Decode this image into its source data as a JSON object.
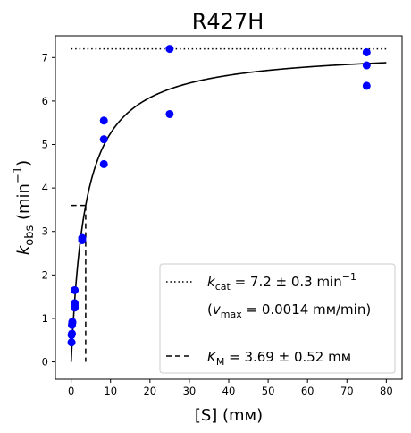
{
  "chart_data": {
    "type": "scatter",
    "title": "R427H",
    "xlabel": "[S] (mм)",
    "ylabel": {
      "main": "k",
      "sub": "obs",
      "rest": " (min",
      "sup": "−1",
      "end": ")"
    },
    "xlim": [
      -4,
      84
    ],
    "ylim": [
      -0.4,
      7.5
    ],
    "xticks": [
      "0",
      "10",
      "20",
      "30",
      "40",
      "50",
      "60",
      "70",
      "80"
    ],
    "yticks": [
      "0",
      "1",
      "2",
      "3",
      "4",
      "5",
      "6",
      "7"
    ],
    "points": {
      "x": [
        0.1,
        0.1,
        0.2,
        0.2,
        0.3,
        0.3,
        0.9,
        0.9,
        0.9,
        0.9,
        2.8,
        2.8,
        8.3,
        8.3,
        8.3,
        25,
        25,
        75,
        75,
        75
      ],
      "y": [
        0.45,
        0.62,
        0.65,
        0.85,
        0.9,
        0.92,
        1.25,
        1.3,
        1.35,
        1.65,
        2.8,
        2.85,
        4.55,
        5.12,
        5.55,
        5.7,
        7.2,
        6.35,
        6.82,
        7.12
      ],
      "color": "#0000ff"
    },
    "fit": {
      "kcat": 7.2,
      "km": 3.69,
      "x_range": [
        0,
        80
      ],
      "color": "#000000"
    },
    "kcat_line": {
      "y": 7.2,
      "x_range": [
        0,
        80
      ]
    },
    "km_line": {
      "x": 3.69,
      "y": 3.6,
      "x_start": 0
    },
    "legend": {
      "placement": "bottom-right",
      "kcat": {
        "sym": "k",
        "sub": "cat",
        "text": " = 7.2 ± 0.3 min",
        "sup": "−1"
      },
      "vmax": {
        "open": "(",
        "sym": "v",
        "sub": "max",
        "text": " = 0.0014 mм/min)"
      },
      "km": {
        "sym": "K",
        "sub": "M",
        "text": " = 3.69 ± 0.52 mм"
      }
    }
  }
}
